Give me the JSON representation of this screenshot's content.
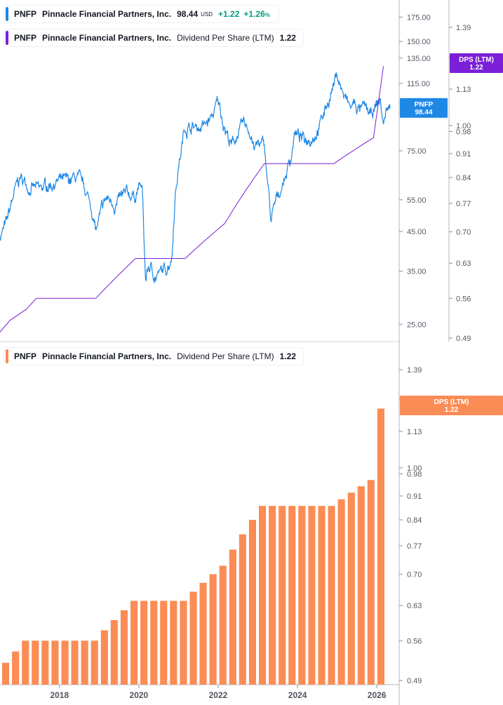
{
  "header": {
    "price_symbol": "PNFP",
    "company": "Pinnacle Financial Partners, Inc.",
    "price_value": "98.44",
    "currency": "USD",
    "change_abs": "+1.22",
    "change_pct": "+1.26",
    "pct_sign": "%",
    "dps_label": "Dividend Per Share (LTM)",
    "dps_value": "1.22"
  },
  "badges": {
    "price_symbol": "PNFP",
    "price_value": "98.44",
    "dps_label": "DPS (LTM)",
    "dps_value": "1.22"
  },
  "colors": {
    "price_line": "#1e88e5",
    "dps_line": "#7b1fd8",
    "bars": "#fb8c55",
    "grid": "#e0e3eb",
    "axis_text": "#555a66"
  },
  "chart_data": [
    {
      "type": "line",
      "title": "PNFP Pinnacle Financial Partners, Inc. price (USD)",
      "scale": "log",
      "y_ticks": [
        25,
        35,
        45,
        55,
        75,
        115,
        135,
        150,
        175
      ],
      "y_tick_labels": [
        "25.00",
        "35.00",
        "45.00",
        "55.00",
        "75.00",
        "115.00",
        "135.00",
        "150.00",
        "175.00"
      ],
      "ylim": [
        22.5,
        195
      ],
      "x_range": [
        "2016-07",
        "2026-04"
      ],
      "series": [
        {
          "name": "PNFP",
          "x": [
            "2016-07",
            "2016-09",
            "2016-11",
            "2017-01",
            "2017-04",
            "2017-07",
            "2017-10",
            "2017-12",
            "2018-03",
            "2018-06",
            "2018-09",
            "2018-11",
            "2018-12",
            "2019-03",
            "2019-06",
            "2019-09",
            "2019-12",
            "2020-01",
            "2020-02",
            "2020-03",
            "2020-04",
            "2020-06",
            "2020-09",
            "2020-11",
            "2020-12",
            "2021-01",
            "2021-03",
            "2021-06",
            "2021-09",
            "2021-11",
            "2022-01",
            "2022-03",
            "2022-05",
            "2022-07",
            "2022-09",
            "2022-11",
            "2022-12",
            "2023-01",
            "2023-03",
            "2023-05",
            "2023-07",
            "2023-09",
            "2023-11",
            "2023-12",
            "2024-03",
            "2024-06",
            "2024-08",
            "2024-09",
            "2024-11",
            "2025-01",
            "2025-03",
            "2025-05",
            "2025-06",
            "2025-08",
            "2025-10",
            "2025-11",
            "2026-01",
            "2026-02",
            "2026-03",
            "2026-04"
          ],
          "values": [
            44,
            47,
            56,
            63,
            60,
            58,
            61,
            62,
            61,
            63,
            58,
            51,
            45,
            55,
            54,
            56,
            57,
            60,
            59,
            33,
            36,
            34,
            35,
            39,
            58,
            68,
            88,
            87,
            88,
            92,
            102,
            88,
            77,
            84,
            88,
            84,
            76,
            78,
            77,
            48,
            56,
            63,
            72,
            84,
            80,
            84,
            90,
            95,
            108,
            122,
            106,
            98,
            101,
            97,
            97,
            92,
            100,
            104,
            88,
            98.44
          ]
        }
      ]
    },
    {
      "type": "line",
      "title": "Dividend Per Share (LTM) overlay",
      "y_axis": "right",
      "y_ticks": [
        0.49,
        0.56,
        0.63,
        0.7,
        0.77,
        0.84,
        0.91,
        0.98,
        1.0,
        1.13,
        1.26,
        1.39
      ],
      "y_tick_labels": [
        "0.49",
        "0.56",
        "0.63",
        "0.70",
        "0.77",
        "0.84",
        "0.91",
        "0.98",
        "1.00",
        "1.13",
        "1.26",
        "1.39"
      ],
      "ylim": [
        0.49,
        1.44
      ],
      "series": [
        {
          "name": "Dividend Per Share (LTM)",
          "x": [
            "2016-07",
            "2016-10",
            "2017-03",
            "2017-06",
            "2017-09",
            "2017-12",
            "2018-03",
            "2018-06",
            "2018-09",
            "2018-12",
            "2019-03",
            "2019-06",
            "2019-09",
            "2019-12",
            "2020-03",
            "2020-06",
            "2020-09",
            "2020-12",
            "2021-03",
            "2021-06",
            "2021-09",
            "2021-12",
            "2022-03",
            "2022-06",
            "2022-09",
            "2022-12",
            "2023-03",
            "2023-06",
            "2023-09",
            "2023-12",
            "2024-03",
            "2024-06",
            "2024-09",
            "2024-12",
            "2025-03",
            "2025-06",
            "2025-09",
            "2025-12",
            "2026-03"
          ],
          "values": [
            0.5,
            0.52,
            0.54,
            0.56,
            0.56,
            0.56,
            0.56,
            0.56,
            0.56,
            0.56,
            0.58,
            0.6,
            0.62,
            0.64,
            0.64,
            0.64,
            0.64,
            0.64,
            0.64,
            0.66,
            0.68,
            0.7,
            0.72,
            0.76,
            0.8,
            0.84,
            0.88,
            0.88,
            0.88,
            0.88,
            0.88,
            0.88,
            0.88,
            0.88,
            0.9,
            0.92,
            0.94,
            0.96,
            1.22
          ]
        }
      ]
    },
    {
      "type": "bar",
      "title": "PNFP Pinnacle Financial Partners, Inc. Dividend Per Share (LTM)",
      "y_ticks": [
        0.49,
        0.56,
        0.63,
        0.7,
        0.77,
        0.84,
        0.91,
        0.98,
        1.0,
        1.13,
        1.26,
        1.39
      ],
      "y_tick_labels": [
        "0.49",
        "0.56",
        "0.63",
        "0.70",
        "0.77",
        "0.84",
        "0.91",
        "0.98",
        "1.00",
        "1.13",
        "1.26",
        "1.39"
      ],
      "ylim": [
        0.49,
        1.44
      ],
      "x_ticks": [
        "2018",
        "2020",
        "2022",
        "2024",
        "2026"
      ],
      "categories": [
        "2016-07",
        "2016-10",
        "2017-01",
        "2017-04",
        "2017-07",
        "2017-10",
        "2018-01",
        "2018-04",
        "2018-07",
        "2018-10",
        "2019-01",
        "2019-04",
        "2019-07",
        "2019-10",
        "2020-01",
        "2020-04",
        "2020-07",
        "2020-10",
        "2021-01",
        "2021-04",
        "2021-07",
        "2021-10",
        "2022-01",
        "2022-04",
        "2022-07",
        "2022-10",
        "2023-01",
        "2023-04",
        "2023-07",
        "2023-10",
        "2024-01",
        "2024-04",
        "2024-07",
        "2024-10",
        "2025-01",
        "2025-04",
        "2025-07",
        "2025-10",
        "2026-02"
      ],
      "series": [
        {
          "name": "Dividend Per Share (LTM)",
          "values": [
            0.52,
            0.54,
            0.56,
            0.56,
            0.56,
            0.56,
            0.56,
            0.56,
            0.56,
            0.56,
            0.58,
            0.6,
            0.62,
            0.64,
            0.64,
            0.64,
            0.64,
            0.64,
            0.64,
            0.66,
            0.68,
            0.7,
            0.72,
            0.76,
            0.8,
            0.84,
            0.88,
            0.88,
            0.88,
            0.88,
            0.88,
            0.88,
            0.88,
            0.88,
            0.9,
            0.92,
            0.94,
            0.96,
            1.22
          ]
        }
      ]
    }
  ]
}
